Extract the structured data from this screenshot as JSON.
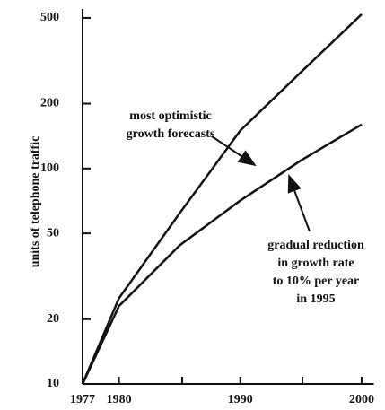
{
  "chart_data": {
    "type": "line",
    "y_label": "units of telephone traffic",
    "x": [
      1977,
      1980,
      1985,
      1990,
      1995,
      2000
    ],
    "series": [
      {
        "name": "most optimistic growth forecasts",
        "color": "#111111",
        "values": [
          10,
          25,
          62,
          150,
          280,
          520
        ]
      },
      {
        "name": "gradual reduction in growth rate to 10% per year in 1995",
        "color": "#111111",
        "values": [
          10,
          23,
          44,
          71,
          109,
          160
        ]
      }
    ],
    "annotations": [
      {
        "lines": [
          "most optimistic",
          "growth forecasts"
        ]
      },
      {
        "lines": [
          "gradual reduction",
          "in growth rate",
          "to 10% per year",
          "in 1995"
        ]
      }
    ],
    "xlim": [
      1977,
      2001
    ],
    "xticks": [
      1977,
      1980,
      1990,
      2000
    ],
    "ylim": [
      10,
      550
    ],
    "yticks": [
      10,
      20,
      50,
      100,
      200,
      500
    ],
    "log_y": true
  }
}
